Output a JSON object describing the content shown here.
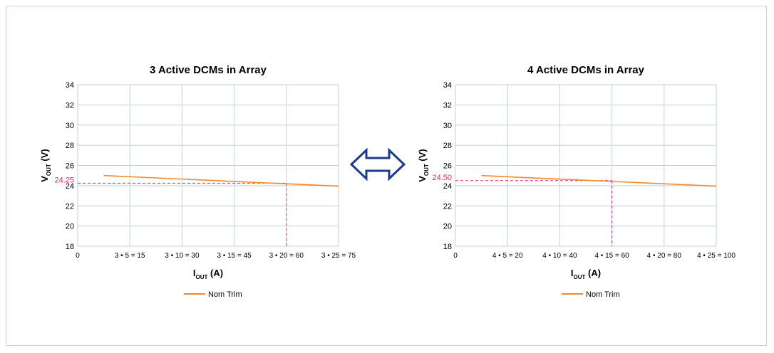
{
  "colors": {
    "series": "#f08a2c",
    "annotation": "#e02d6a",
    "grid": "#c6cfd8",
    "arrow": "#1f3a8a"
  },
  "center_icon": "double-headed-arrow-icon",
  "chart_data": [
    {
      "type": "line",
      "title": "3 Active DCMs in Array",
      "ylabel": {
        "main": "V",
        "sub": "OUT",
        "unit": " (V)"
      },
      "xlabel": {
        "main": "I",
        "sub": "OUT",
        "unit": " (A)"
      },
      "ylim": [
        18,
        34
      ],
      "yticks": [
        18,
        20,
        22,
        24,
        26,
        28,
        30,
        32,
        34
      ],
      "xlim": [
        0,
        75
      ],
      "xticks": [
        0,
        15,
        30,
        45,
        60,
        75
      ],
      "xtick_labels": [
        "0",
        "3 • 5 = 15",
        "3 • 10 = 30",
        "3 • 15 = 45",
        "3 • 20 = 60",
        "3 • 25 = 75"
      ],
      "grid": true,
      "legend_position": "bottom-center",
      "series": [
        {
          "name": "Nom Trim",
          "x": [
            7.5,
            75
          ],
          "y": [
            25.0,
            23.95
          ]
        }
      ],
      "annotation": {
        "x": 60,
        "y": 24.25,
        "label": "24.25"
      }
    },
    {
      "type": "line",
      "title": "4 Active DCMs in Array",
      "ylabel": {
        "main": "V",
        "sub": "OUT",
        "unit": " (V)"
      },
      "xlabel": {
        "main": "I",
        "sub": "OUT",
        "unit": " (A)"
      },
      "ylim": [
        18,
        34
      ],
      "yticks": [
        18,
        20,
        22,
        24,
        26,
        28,
        30,
        32,
        34
      ],
      "xlim": [
        0,
        100
      ],
      "xticks": [
        0,
        20,
        40,
        60,
        80,
        100
      ],
      "xtick_labels": [
        "0",
        "4 • 5 = 20",
        "4 • 10 = 40",
        "4 • 15 = 60",
        "4 • 20 = 80",
        "4 • 25 = 100"
      ],
      "grid": true,
      "legend_position": "bottom-center",
      "series": [
        {
          "name": "Nom Trim",
          "x": [
            10,
            100
          ],
          "y": [
            25.0,
            23.95
          ]
        }
      ],
      "annotation": {
        "x": 60,
        "y": 24.5,
        "label": "24.50"
      }
    }
  ]
}
